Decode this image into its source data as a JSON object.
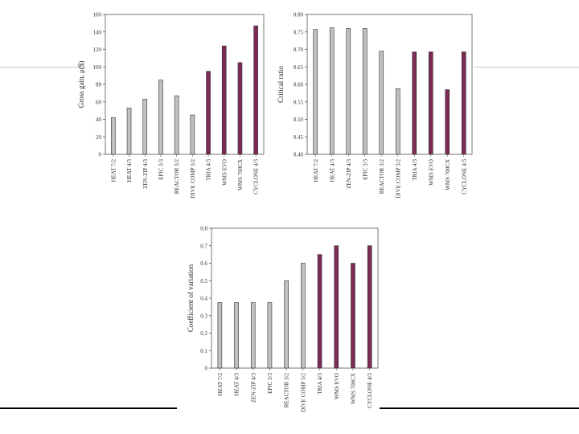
{
  "chart_data": [
    {
      "type": "bar",
      "ylabel": "Gross gain, μ($)",
      "ylim": [
        0,
        160
      ],
      "yticks": [
        0,
        20,
        40,
        60,
        80,
        100,
        120,
        140,
        160
      ],
      "categories": [
        "HEAT 7/2",
        "HEAT 4/3",
        "ZEN-ZIP 4/3",
        "EPIC 3/3",
        "REACTOR 3/2",
        "DIVE COMP 3/2",
        "TRIA 4/3",
        "WMS EVO",
        "WMS 700CX",
        "CYCLONE 4/3"
      ],
      "values": [
        42,
        53,
        63,
        85,
        67,
        45,
        95,
        124,
        105,
        147
      ],
      "colors": [
        "#c0c0c0",
        "#c0c0c0",
        "#c0c0c0",
        "#c0c0c0",
        "#c0c0c0",
        "#c0c0c0",
        "#7b2b55",
        "#7b2b55",
        "#7b2b55",
        "#7b2b55"
      ]
    },
    {
      "type": "bar",
      "ylabel": "Critical ratio",
      "ylim": [
        0.4,
        0.8
      ],
      "yticks": [
        "0.40",
        "0.45",
        "0.50",
        "0.55",
        "0.60",
        "0.65",
        "0.70",
        "0.75",
        "0.80"
      ],
      "categories": [
        "HEAT 7/2",
        "HEAT 4/3",
        "ZEN-ZIP 4/3",
        "EPIC 3/3",
        "REACTOR 3/2",
        "DIVE COMP 3/2",
        "TRIA 4/3",
        "WMS EVO",
        "WMS 700CX",
        "CYCLONE 4/3"
      ],
      "values": [
        0.757,
        0.762,
        0.76,
        0.76,
        0.695,
        0.588,
        0.693,
        0.693,
        0.585,
        0.693
      ],
      "colors": [
        "#c0c0c0",
        "#c0c0c0",
        "#c0c0c0",
        "#c0c0c0",
        "#c0c0c0",
        "#c0c0c0",
        "#7b2b55",
        "#7b2b55",
        "#7b2b55",
        "#7b2b55"
      ]
    },
    {
      "type": "bar",
      "ylabel": "Coefficient of variation",
      "ylim": [
        0,
        0.8
      ],
      "yticks": [
        "0",
        "0.1",
        "0.2",
        "0.3",
        "0.4",
        "0.5",
        "0.6",
        "0.7",
        "0.8"
      ],
      "categories": [
        "HEAT 7/2",
        "HEAT 4/3",
        "ZEN-ZIP 4/3",
        "EPIC 3/3",
        "REACTOR 3/2",
        "DIVE COMP 3/2",
        "TRIA 4/3",
        "WMS EVO",
        "WMS 700CX",
        "CYCLONE 4/3"
      ],
      "values": [
        0.375,
        0.375,
        0.375,
        0.375,
        0.5,
        0.6,
        0.65,
        0.7,
        0.6,
        0.7
      ],
      "colors": [
        "#c0c0c0",
        "#c0c0c0",
        "#c0c0c0",
        "#c0c0c0",
        "#c0c0c0",
        "#c0c0c0",
        "#7b2b55",
        "#7b2b55",
        "#7b2b55",
        "#7b2b55"
      ]
    }
  ]
}
